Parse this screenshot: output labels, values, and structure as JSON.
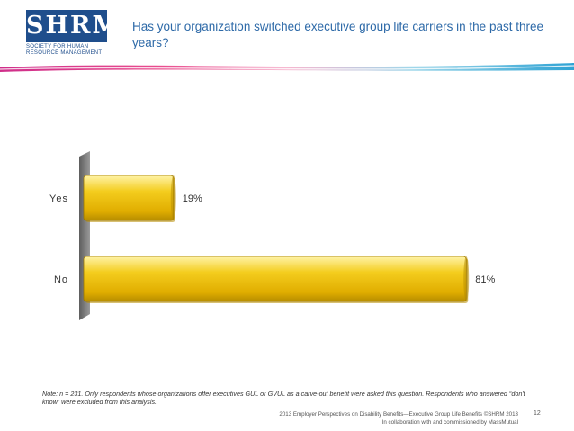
{
  "logo": {
    "wordmark": "SHRM",
    "tagline": "SOCIETY FOR HUMAN RESOURCE MANAGEMENT"
  },
  "slide": {
    "title": "Has your organization switched executive group life carriers in the past three years?"
  },
  "chart_data": {
    "type": "bar",
    "orientation": "horizontal",
    "categories": [
      "Yes",
      "No"
    ],
    "values": [
      19,
      81
    ],
    "value_labels": [
      "19%",
      "81%"
    ],
    "unit": "%",
    "xlim": [
      0,
      100
    ],
    "grid": false,
    "legend": "none",
    "colors": {
      "bar": "#f2c30f",
      "bar_dark": "#b68c00",
      "wall": "#7f7f7f"
    }
  },
  "note": "Note: n = 231. Only respondents whose organizations offer executives GUL or GVUL as a carve-out benefit were asked this question. Respondents who answered “don't know” were excluded from this analysis.",
  "footer": {
    "line1": "2013 Employer Perspectives on Disability Benefits—Executive Group Life Benefits ©SHRM 2013",
    "line2": "In collaboration with and commissioned by MassMutual",
    "page_number": "12"
  },
  "colors": {
    "title": "#2e6aa8",
    "brand": "#1f4e8c"
  }
}
